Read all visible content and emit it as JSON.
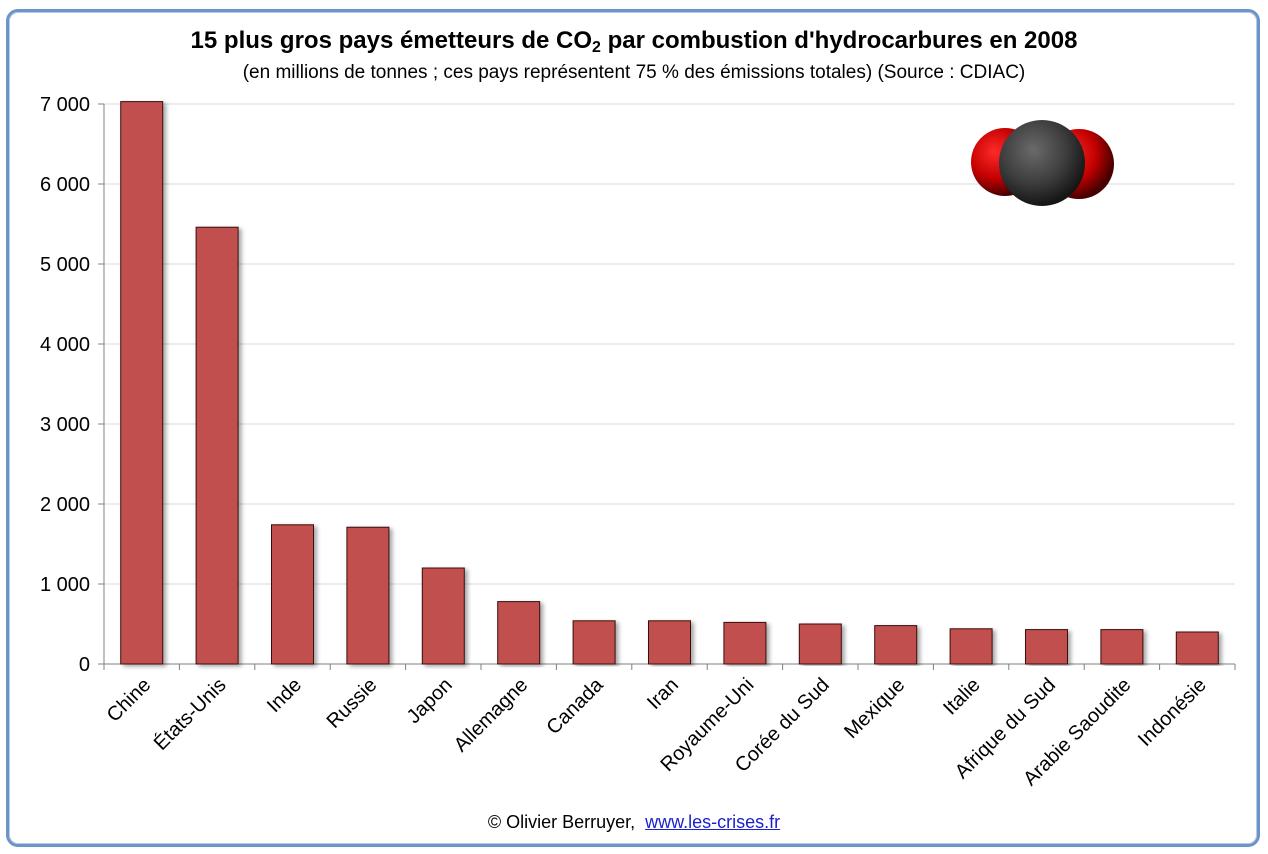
{
  "header": {
    "title_before": "15 plus gros pays émetteurs de CO",
    "title_sub": "2",
    "title_after": " par combustion d'hydrocarbures en 2008",
    "subtitle": "(en millions de tonnes ; ces pays représentent 75 % des émissions totales) (Source : CDIAC)"
  },
  "footer": {
    "credit": "© Olivier Berruyer,",
    "link": "www.les-crises.fr"
  },
  "colors": {
    "bar": "#c0504d",
    "bar_outline": "#3a1010",
    "grid": "#d9d9d9",
    "frame": "#6c94c9"
  },
  "molecule_icon": "co2-molecule-icon",
  "chart_data": {
    "type": "bar",
    "categories": [
      "Chine",
      "États-Unis",
      "Inde",
      "Russie",
      "Japon",
      "Allemagne",
      "Canada",
      "Iran",
      "Royaume-Uni",
      "Corée du Sud",
      "Mexique",
      "Italie",
      "Afrique du Sud",
      "Arabie Saoudite",
      "Indonésie"
    ],
    "values": [
      7030,
      5460,
      1740,
      1710,
      1200,
      780,
      540,
      540,
      520,
      500,
      480,
      440,
      430,
      430,
      400
    ],
    "yticks": [
      "0",
      "1 000",
      "2 000",
      "3 000",
      "4 000",
      "5 000",
      "6 000",
      "7 000"
    ],
    "ylim": [
      0,
      7000
    ],
    "grid": true,
    "legend": "none"
  }
}
